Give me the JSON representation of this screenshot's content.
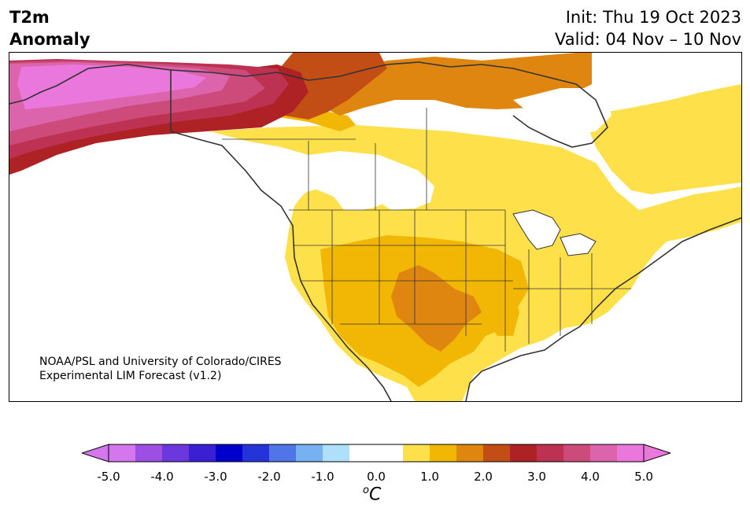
{
  "header": {
    "variable_line1": "T2m",
    "variable_line2": "Anomaly",
    "init": "Init: Thu 19 Oct 2023",
    "valid": "Valid: 04 Nov – 10 Nov"
  },
  "map": {
    "region": "North America",
    "credit_line1": "NOAA/PSL and University of Colorado/CIRES",
    "credit_line2": "Experimental LIM Forecast (v1.2)"
  },
  "colorbar": {
    "tick_labels": [
      "-5.0",
      "-4.0",
      "-3.0",
      "-2.0",
      "-1.0",
      "0.0",
      "1.0",
      "2.0",
      "3.0",
      "4.0",
      "5.0"
    ],
    "units_base": "C",
    "units_sup": "o",
    "bin_colors": [
      "#d476ee",
      "#9d4fe3",
      "#6a38dc",
      "#3a1fd3",
      "#0000cc",
      "#2434d9",
      "#4f75e8",
      "#78b1f2",
      "#aee0fb",
      "#ffffff",
      "#ffffff",
      "#fde04a",
      "#f2b705",
      "#de8610",
      "#c24e16",
      "#ae2225",
      "#bd3252",
      "#cc4b7a",
      "#dc64ad",
      "#ea78dc"
    ],
    "extend_low": "#d476ee",
    "extend_high": "#ea78dc"
  },
  "colors": {
    "white": "#ffffff",
    "light_yellow": "#fde04a",
    "gold": "#f2b705",
    "orange": "#de8610",
    "dark_orange": "#c24e16",
    "red": "#ae2225",
    "crimson": "#bd3252",
    "rose": "#cc4b7a",
    "pink": "#dc64ad",
    "magenta": "#ea78dc"
  }
}
